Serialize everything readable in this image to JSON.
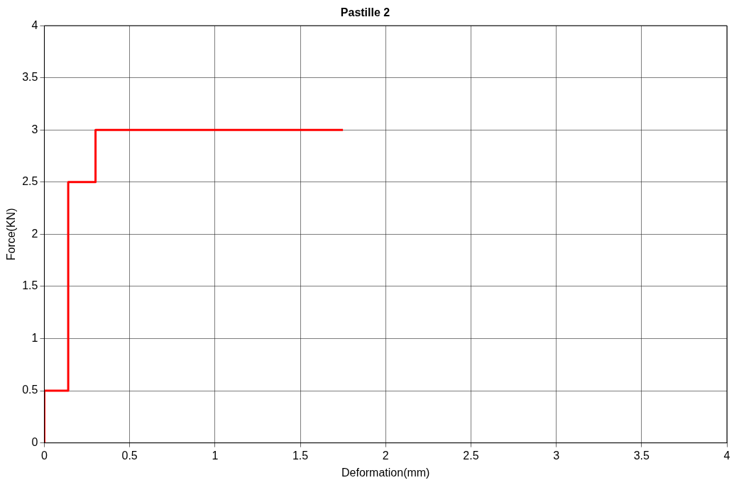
{
  "chart_data": {
    "type": "line",
    "title": "Pastille 2",
    "xlabel": "Deformation(mm)",
    "ylabel": "Force(KN)",
    "x": [
      0,
      0,
      0.14,
      0.14,
      0.3,
      0.3,
      1.75
    ],
    "series": [
      {
        "color": "#ff0000",
        "values": [
          0,
          0.5,
          0.5,
          2.5,
          2.5,
          3,
          3
        ]
      }
    ],
    "xlim": [
      0,
      4
    ],
    "xticks": [
      0,
      0.5,
      1,
      1.5,
      2,
      2.5,
      3,
      3.5,
      4
    ],
    "ylim": [
      0,
      4
    ],
    "yticks": [
      0,
      0.5,
      1,
      1.5,
      2,
      2.5,
      3,
      3.5,
      4
    ],
    "grid": true,
    "legend": false,
    "marker": "none",
    "line_style": "solid"
  }
}
